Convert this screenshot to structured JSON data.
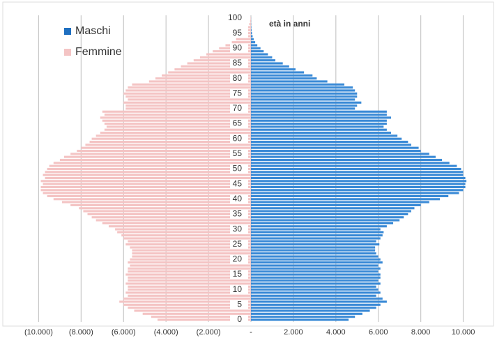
{
  "chart_data": {
    "type": "pyramid",
    "y_label": "età in anni",
    "categories": [
      0,
      null,
      null,
      null,
      null,
      5,
      null,
      null,
      null,
      null,
      10,
      null,
      null,
      null,
      null,
      15,
      null,
      null,
      null,
      null,
      20,
      null,
      null,
      null,
      null,
      25,
      null,
      null,
      null,
      null,
      30,
      null,
      null,
      null,
      null,
      35,
      null,
      null,
      null,
      null,
      40,
      null,
      null,
      null,
      null,
      45,
      null,
      null,
      null,
      null,
      50,
      null,
      null,
      null,
      null,
      55,
      null,
      null,
      null,
      null,
      60,
      null,
      null,
      null,
      null,
      65,
      null,
      null,
      null,
      null,
      70,
      null,
      null,
      null,
      null,
      75,
      null,
      null,
      null,
      null,
      80,
      null,
      null,
      null,
      null,
      85,
      null,
      null,
      null,
      null,
      90,
      null,
      null,
      null,
      null,
      95,
      null,
      null,
      null,
      null,
      100
    ],
    "series": [
      {
        "name": "Maschi",
        "color": "#3a8ad6",
        "values": [
          4600,
          4900,
          5250,
          5600,
          5900,
          6100,
          6400,
          6200,
          5900,
          6100,
          6000,
          5900,
          6100,
          6000,
          6100,
          6100,
          6000,
          6100,
          6000,
          6200,
          6100,
          6000,
          5900,
          5850,
          5850,
          6050,
          5900,
          6100,
          6200,
          6250,
          6100,
          6400,
          6700,
          7000,
          7200,
          7400,
          7550,
          7700,
          8000,
          8400,
          8900,
          9300,
          9800,
          10000,
          10100,
          10100,
          10150,
          10100,
          10000,
          10000,
          9900,
          9700,
          9350,
          9000,
          8700,
          8400,
          8000,
          7900,
          7550,
          7400,
          7100,
          6900,
          6600,
          6400,
          6250,
          6400,
          6400,
          6600,
          6400,
          6400,
          4900,
          5000,
          5200,
          4900,
          5000,
          5000,
          4900,
          4800,
          4400,
          3600,
          3100,
          2900,
          2500,
          2100,
          1800,
          1500,
          1150,
          1000,
          800,
          600,
          450,
          300,
          200,
          130,
          80,
          50,
          30,
          20,
          10,
          5,
          3
        ]
      },
      {
        "name": "Femmine",
        "color": "#f4c4c4",
        "values": [
          -4400,
          -4700,
          -5100,
          -5500,
          -5800,
          -6000,
          -6200,
          -6000,
          -5800,
          -5900,
          -5800,
          -5800,
          -5900,
          -5800,
          -5800,
          -5900,
          -5800,
          -5800,
          -5700,
          -5800,
          -5700,
          -5600,
          -5600,
          -5600,
          -5700,
          -5900,
          -5800,
          -6000,
          -6100,
          -6300,
          -6400,
          -6700,
          -7000,
          -7300,
          -7500,
          -7700,
          -7900,
          -8100,
          -8500,
          -8900,
          -9300,
          -9600,
          -9800,
          -9900,
          -9900,
          -9800,
          -9900,
          -9700,
          -9800,
          -9700,
          -9600,
          -9500,
          -9300,
          -9000,
          -8800,
          -8500,
          -8200,
          -8000,
          -7800,
          -7600,
          -7500,
          -7300,
          -7100,
          -6900,
          -6800,
          -6900,
          -7000,
          -7100,
          -6900,
          -7000,
          -5900,
          -5900,
          -6000,
          -5800,
          -5900,
          -6000,
          -5900,
          -5800,
          -5600,
          -4800,
          -4500,
          -4200,
          -3900,
          -3600,
          -3300,
          -3000,
          -2700,
          -2400,
          -2100,
          -1800,
          -1500,
          -1200,
          -900,
          -700,
          -500,
          -350,
          -220,
          -130,
          -80,
          -40,
          -20
        ]
      }
    ],
    "xlim": [
      -11000,
      11000
    ],
    "xticks": [
      {
        "value": -10000,
        "label": "(10.000)"
      },
      {
        "value": -8000,
        "label": "(8.000)"
      },
      {
        "value": -6000,
        "label": "(6.000)"
      },
      {
        "value": -4000,
        "label": "(4.000)"
      },
      {
        "value": -2000,
        "label": "(2.000)"
      },
      {
        "value": 0,
        "label": "-"
      },
      {
        "value": 2000,
        "label": "2.000"
      },
      {
        "value": 4000,
        "label": "4.000"
      },
      {
        "value": 6000,
        "label": "6.000"
      },
      {
        "value": 8000,
        "label": "8.000"
      },
      {
        "value": 10000,
        "label": "10.000"
      }
    ],
    "grid": true
  }
}
